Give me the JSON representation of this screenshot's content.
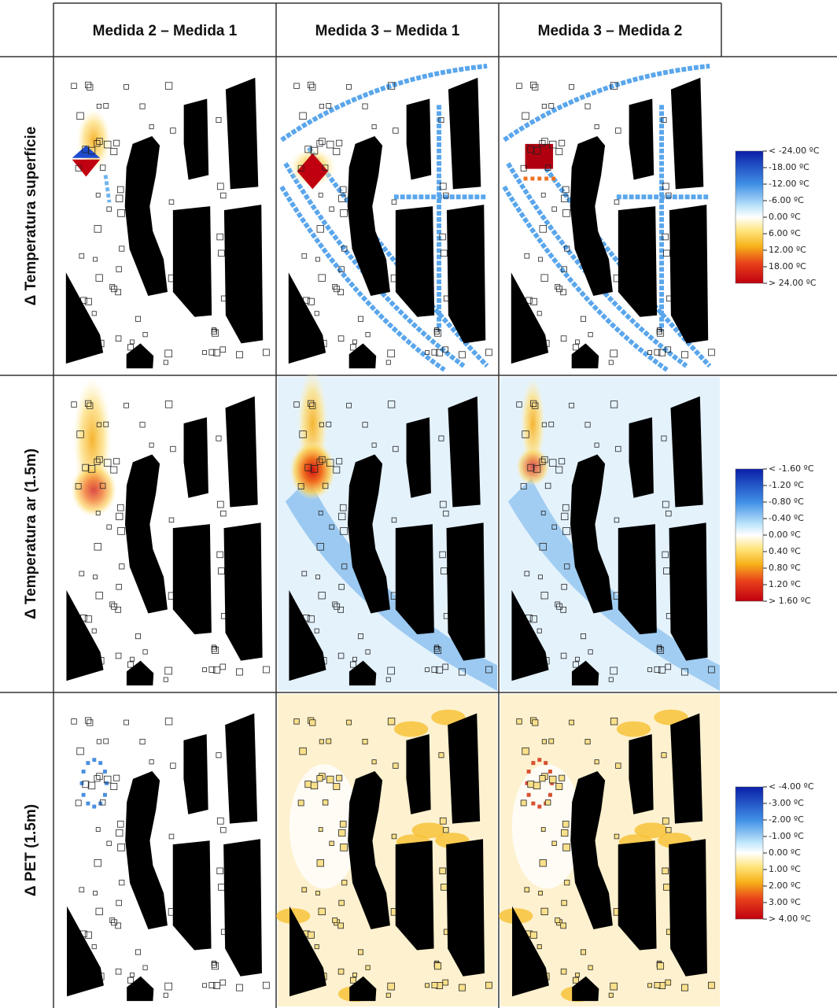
{
  "header": {
    "columns": [
      "Medida 2 – Medida 1",
      "Medida 3 – Medida 1",
      "Medida 3 – Medida 2"
    ]
  },
  "rows": [
    {
      "label": "Δ Temperatura superfície",
      "legend": [
        "< -24.00 ºC",
        "-18.00 ºC",
        "-12.00 ºC",
        "-6.00 ºC",
        "0.00 ºC",
        "6.00 ºC",
        "12.00 ºC",
        "18.00 ºC",
        "> 24.00 ºC"
      ]
    },
    {
      "label": "Δ Temperatura ar (1.5m)",
      "legend": [
        "< -1.60 ºC",
        "-1.20 ºC",
        "-0.80 ºC",
        "-0.40 ºC",
        "0.00 ºC",
        "0.40 ºC",
        "0.80 ºC",
        "1.20 ºC",
        "> 1.60 ºC"
      ]
    },
    {
      "label": "Δ PET (1.5m)",
      "legend": [
        "< -4.00 ºC",
        "-3.00 ºC",
        "-2.00 ºC",
        "-1.00 ºC",
        "0.00 ºC",
        "1.00 ºC",
        "2.00 ºC",
        "3.00 ºC",
        "> 4.00 ºC"
      ]
    }
  ]
}
